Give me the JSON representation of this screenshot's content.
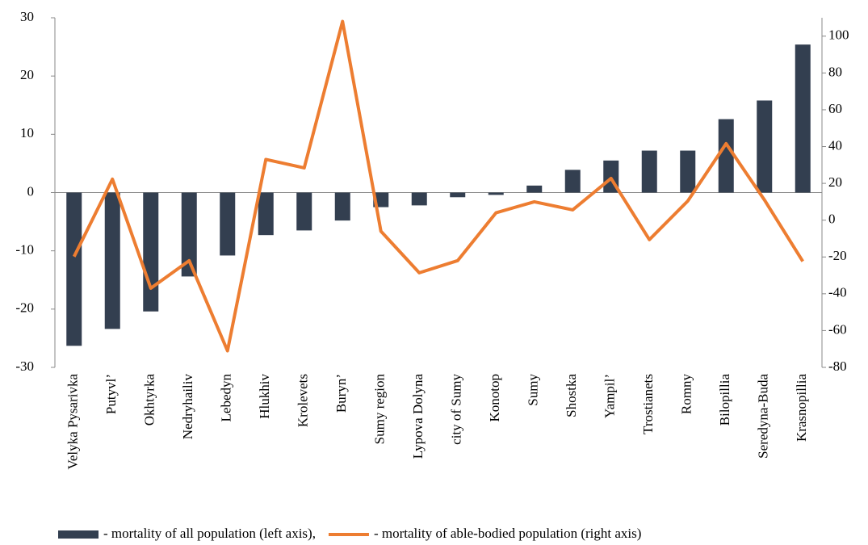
{
  "chart_data": {
    "type": "bar-line",
    "categories": [
      "Velyka Pysarivka",
      "Putyvl’",
      "Okhtyrka",
      "Nedryhailiv",
      "Lebedyn",
      "Hlukhiv",
      "Krolevets",
      "Buryn’",
      "Sumy region",
      "Lypova Dolyna",
      "city of Sumy",
      "Konotop",
      "Sumy",
      "Shostka",
      "Yampil’",
      "Trostianets",
      "Romny",
      "Bilopillia",
      "Seredyna-Buda",
      "Krasnopillia"
    ],
    "series": [
      {
        "name": "- mortality of all population (left axis),",
        "type": "bar",
        "color": "#333f50",
        "values": [
          -26.3,
          -23.4,
          -20.4,
          -14.4,
          -10.8,
          -7.3,
          -6.5,
          -4.8,
          -2.5,
          -2.2,
          -0.8,
          -0.4,
          1.2,
          3.9,
          5.5,
          7.2,
          7.2,
          12.6,
          15.8,
          25.4
        ]
      },
      {
        "name": "- mortality of able-bodied population (right axis)",
        "type": "line",
        "axis": "y2",
        "color": "#ed7d31",
        "values": [
          -19.8,
          22.3,
          -37,
          -22,
          -71,
          33,
          28.4,
          108,
          -6,
          -28.6,
          -22,
          4,
          10,
          5.6,
          22.7,
          -10.6,
          10.4,
          41.6,
          11,
          -22.4
        ]
      }
    ],
    "ylim": [
      -30,
      30
    ],
    "yticks": [
      -30,
      -20,
      -10,
      0,
      10,
      20,
      30
    ],
    "y2lim": [
      -80,
      110
    ],
    "y2ticks": [
      -80,
      -60,
      -40,
      -20,
      0,
      20,
      40,
      60,
      80,
      100
    ],
    "legend": "bottom"
  }
}
